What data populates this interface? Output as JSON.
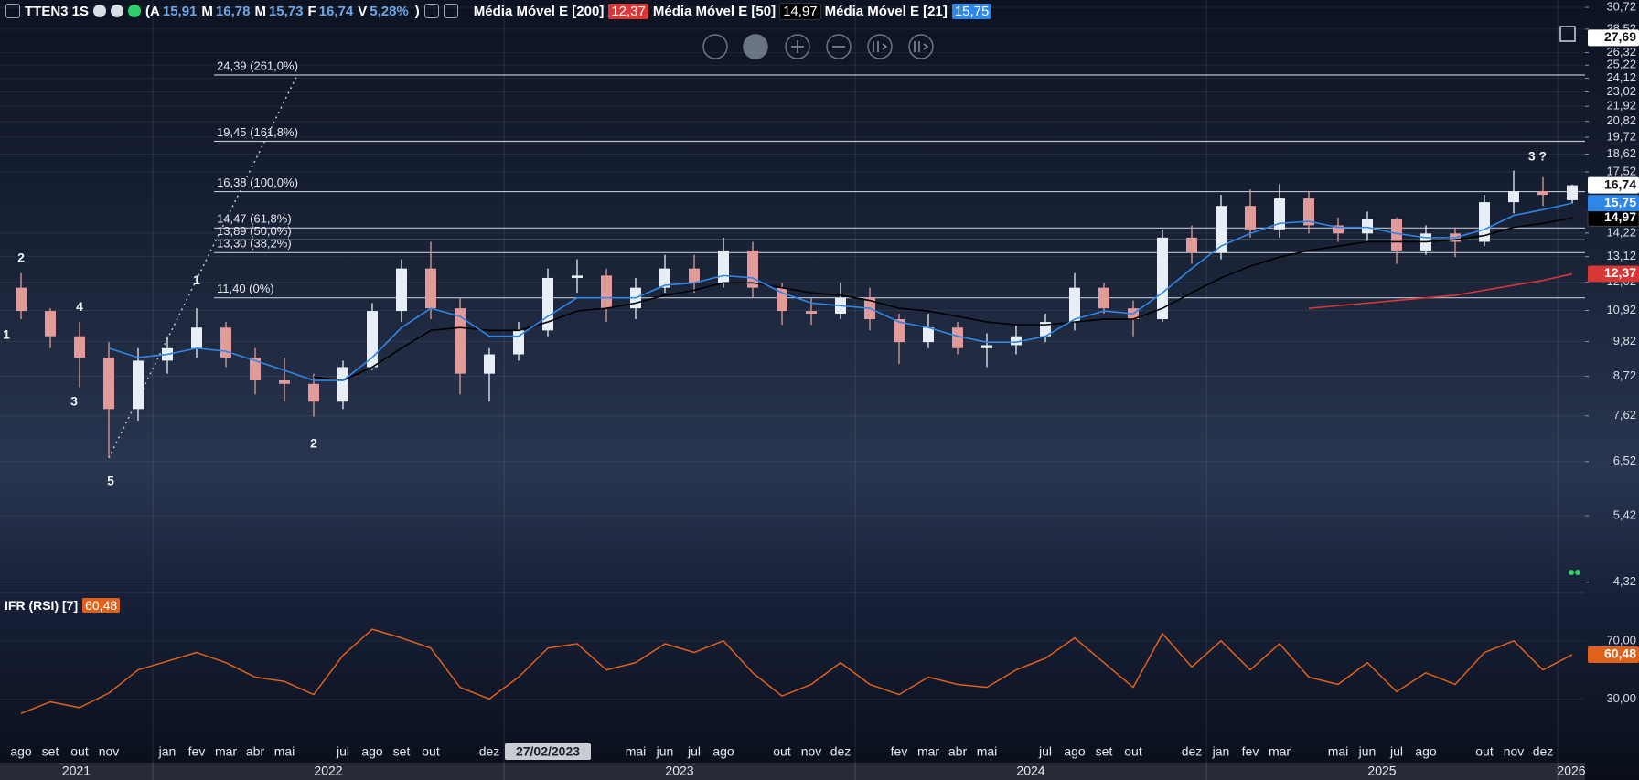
{
  "chart_data": {
    "type": "candlestick",
    "symbol": "TTEN3 1S",
    "header_ohlc": [
      {
        "key": "(A",
        "label": "15,91"
      },
      {
        "key": "M",
        "label": "16,78"
      },
      {
        "key": "M",
        "label": "15,73"
      },
      {
        "key": "F",
        "label": "16,74"
      },
      {
        "key": "V",
        "label": "5,28%"
      }
    ],
    "header_suffix": ")",
    "log_scale": true,
    "grid": true,
    "ylim": [
      4.17,
      31.5
    ],
    "yticks": [
      {
        "value": 4.32,
        "label": "4,32"
      },
      {
        "value": 5.42,
        "label": "5,42"
      },
      {
        "value": 6.52,
        "label": "6,52"
      },
      {
        "value": 7.62,
        "label": "7,62"
      },
      {
        "value": 8.72,
        "label": "8,72"
      },
      {
        "value": 9.82,
        "label": "9,82"
      },
      {
        "value": 10.92,
        "label": "10,92"
      },
      {
        "value": 12.02,
        "label": "12,02"
      },
      {
        "value": 13.12,
        "label": "13,12"
      },
      {
        "value": 14.22,
        "label": "14,22"
      },
      {
        "value": 17.52,
        "label": "17,52"
      },
      {
        "value": 18.62,
        "label": "18,62"
      },
      {
        "value": 19.72,
        "label": "19,72"
      },
      {
        "value": 20.82,
        "label": "20,82"
      },
      {
        "value": 21.92,
        "label": "21,92"
      },
      {
        "value": 23.02,
        "label": "23,02"
      },
      {
        "value": 24.12,
        "label": "24,12"
      },
      {
        "value": 25.22,
        "label": "25,22"
      },
      {
        "value": 26.32,
        "label": "26,32"
      },
      {
        "value": 28.52,
        "label": "28,52"
      },
      {
        "value": 30.72,
        "label": "30,72"
      }
    ],
    "categories": [
      "ago",
      "set",
      "out",
      "nov",
      null,
      "jan",
      "fev",
      "mar",
      "abr",
      "mai",
      null,
      "jul",
      "ago",
      "set",
      "out",
      null,
      "dez",
      null,
      "27/02/2023",
      null,
      null,
      "mai",
      "jun",
      "jul",
      "ago",
      null,
      "out",
      "nov",
      "dez",
      null,
      "fev",
      "mar",
      "abr",
      "mai",
      null,
      "jul",
      "ago",
      "set",
      "out",
      null,
      "dez",
      "jan",
      "fev",
      "mar",
      null,
      "mai",
      "jun",
      "jul",
      "ago",
      null,
      "out",
      "nov",
      "dez",
      null
    ],
    "years": [
      "2021",
      "2022",
      "2023",
      "2024",
      "2025",
      "2026"
    ],
    "candles": {
      "open": [
        11.8,
        10.9,
        10.0,
        9.3,
        7.8,
        9.2,
        9.6,
        10.3,
        9.3,
        8.6,
        8.5,
        8.0,
        9.0,
        10.9,
        12.6,
        11.0,
        8.8,
        9.4,
        10.2,
        12.2,
        12.3,
        11.0,
        11.8,
        12.6,
        12.0,
        13.4,
        11.8,
        10.9,
        10.8,
        11.4,
        10.6,
        9.8,
        10.3,
        9.6,
        9.7,
        10.0,
        10.5,
        11.8,
        11.0,
        10.6,
        14.0,
        13.3,
        15.6,
        14.4,
        16.0,
        14.6,
        14.2,
        14.9,
        13.4,
        14.2,
        13.8,
        15.8,
        16.4,
        15.91
      ],
      "high": [
        12.4,
        11.0,
        10.5,
        9.8,
        9.6,
        10.0,
        11.0,
        10.5,
        9.6,
        9.3,
        8.8,
        9.2,
        11.2,
        13.0,
        13.8,
        11.4,
        9.6,
        10.5,
        12.6,
        13.0,
        12.6,
        12.2,
        13.2,
        13.2,
        14.0,
        13.8,
        12.0,
        11.4,
        12.0,
        11.8,
        10.8,
        10.8,
        10.5,
        10.1,
        10.4,
        10.8,
        12.4,
        12.0,
        11.3,
        14.4,
        14.6,
        16.2,
        16.5,
        16.8,
        16.4,
        15.0,
        15.3,
        15.0,
        14.6,
        14.5,
        16.2,
        17.6,
        17.2,
        16.78
      ],
      "low": [
        10.6,
        9.6,
        8.4,
        6.6,
        7.5,
        8.8,
        9.3,
        9.0,
        8.2,
        8.0,
        7.6,
        7.8,
        8.9,
        10.5,
        10.6,
        8.2,
        8.0,
        9.2,
        10.0,
        11.6,
        10.5,
        10.6,
        11.6,
        11.6,
        11.8,
        11.4,
        10.4,
        10.4,
        10.6,
        10.2,
        9.1,
        9.6,
        9.4,
        9.0,
        9.4,
        9.8,
        10.2,
        10.8,
        10.0,
        10.5,
        12.8,
        13.0,
        14.0,
        14.0,
        14.2,
        13.8,
        13.8,
        12.8,
        13.2,
        13.1,
        13.6,
        15.2,
        15.6,
        15.73
      ],
      "close": [
        10.9,
        10.0,
        9.3,
        7.8,
        9.2,
        9.6,
        10.3,
        9.3,
        8.6,
        8.5,
        8.0,
        9.0,
        10.9,
        12.6,
        11.0,
        8.8,
        9.4,
        10.2,
        12.2,
        12.3,
        11.0,
        11.8,
        12.6,
        12.0,
        13.4,
        11.8,
        10.9,
        10.8,
        11.4,
        10.6,
        9.8,
        10.3,
        9.6,
        9.7,
        10.0,
        10.5,
        11.8,
        11.0,
        10.6,
        14.0,
        13.3,
        15.6,
        14.4,
        16.0,
        14.6,
        14.2,
        14.9,
        13.4,
        14.2,
        13.8,
        15.8,
        16.4,
        16.2,
        16.74
      ]
    },
    "up_color": "#e8eef5",
    "down_color": "#e39a9a",
    "series": [
      {
        "name": "Média Móvel E [200]",
        "color": "#d93636",
        "values": [
          null,
          null,
          null,
          null,
          null,
          null,
          null,
          null,
          null,
          null,
          null,
          null,
          null,
          null,
          null,
          null,
          null,
          null,
          null,
          null,
          null,
          null,
          null,
          null,
          null,
          null,
          null,
          null,
          null,
          null,
          null,
          null,
          null,
          null,
          null,
          null,
          null,
          null,
          null,
          null,
          null,
          null,
          null,
          null,
          11.0,
          11.1,
          11.2,
          11.3,
          11.4,
          11.5,
          11.7,
          11.9,
          12.1,
          12.37
        ],
        "value_labels": [
          null,
          null,
          null,
          null,
          null,
          null,
          null,
          null,
          null,
          null,
          null,
          null,
          null,
          null,
          null,
          null,
          null,
          null,
          null,
          null,
          null,
          null,
          null,
          null,
          null,
          null,
          null,
          null,
          null,
          null,
          null,
          null,
          null,
          null,
          null,
          null,
          null,
          null,
          null,
          null,
          null,
          null,
          null,
          null,
          null,
          null,
          null,
          null,
          null,
          null,
          null,
          null,
          null,
          "12,37"
        ]
      },
      {
        "name": "Média Móvel E [50]",
        "color": "#000000",
        "values": [
          null,
          null,
          null,
          null,
          null,
          null,
          null,
          null,
          null,
          null,
          8.7,
          8.6,
          9.0,
          9.6,
          10.2,
          10.3,
          10.2,
          10.2,
          10.5,
          10.9,
          11.0,
          11.2,
          11.5,
          11.7,
          12.0,
          12.0,
          11.8,
          11.6,
          11.5,
          11.3,
          11.0,
          10.9,
          10.7,
          10.5,
          10.4,
          10.4,
          10.5,
          10.6,
          10.6,
          11.0,
          11.6,
          12.2,
          12.7,
          13.1,
          13.4,
          13.6,
          13.8,
          13.8,
          13.8,
          13.9,
          14.1,
          14.5,
          14.7,
          14.97
        ],
        "value_labels": [
          null,
          null,
          null,
          null,
          null,
          null,
          null,
          null,
          null,
          null,
          null,
          null,
          null,
          null,
          null,
          null,
          null,
          null,
          null,
          null,
          null,
          null,
          null,
          null,
          null,
          null,
          null,
          null,
          null,
          null,
          null,
          null,
          null,
          null,
          null,
          null,
          null,
          null,
          null,
          null,
          null,
          null,
          null,
          null,
          null,
          null,
          null,
          null,
          null,
          null,
          null,
          null,
          null,
          "14,97"
        ]
      },
      {
        "name": "Média Móvel E [21]",
        "color": "#2e86e6",
        "values": [
          null,
          null,
          null,
          9.6,
          9.3,
          9.4,
          9.6,
          9.5,
          9.2,
          8.9,
          8.6,
          8.6,
          9.3,
          10.3,
          11.0,
          10.7,
          10.0,
          10.0,
          10.7,
          11.4,
          11.4,
          11.4,
          11.9,
          12.0,
          12.3,
          12.2,
          11.6,
          11.2,
          11.1,
          11.0,
          10.5,
          10.3,
          10.0,
          9.8,
          9.8,
          10.0,
          10.6,
          10.9,
          10.8,
          11.6,
          12.6,
          13.6,
          14.2,
          14.7,
          14.8,
          14.5,
          14.5,
          14.2,
          14.0,
          14.0,
          14.4,
          15.1,
          15.4,
          15.75
        ],
        "value_labels": [
          null,
          null,
          null,
          null,
          null,
          null,
          null,
          null,
          null,
          null,
          null,
          null,
          null,
          null,
          null,
          null,
          null,
          null,
          null,
          null,
          null,
          null,
          null,
          null,
          null,
          null,
          null,
          null,
          null,
          null,
          null,
          null,
          null,
          null,
          null,
          null,
          null,
          null,
          null,
          null,
          null,
          null,
          null,
          null,
          null,
          null,
          null,
          null,
          null,
          null,
          null,
          null,
          null,
          "15,75"
        ]
      }
    ],
    "fib_levels": [
      {
        "value": 24.39,
        "label": "24,39 (261,0%)"
      },
      {
        "value": 19.45,
        "label": "19,45 (161,8%)"
      },
      {
        "value": 16.38,
        "label": "16,38 (100,0%)"
      },
      {
        "value": 14.47,
        "label": "14,47 (61,8%)"
      },
      {
        "value": 13.89,
        "label": "13,89 (50,0%)"
      },
      {
        "value": 13.3,
        "label": "13,30 (38,2%)"
      },
      {
        "value": 11.4,
        "label": "11,40 (0%)"
      }
    ],
    "annotations": [
      "2",
      "1",
      "4",
      "3",
      "5",
      "1",
      "2",
      "3 ?"
    ],
    "crosshair": {
      "value": 27.69,
      "label": "27,69"
    },
    "rsi": {
      "name": "IFR (RSI) [7]",
      "color": "#e0611c",
      "values": [
        20,
        28,
        24,
        34,
        50,
        56,
        62,
        55,
        45,
        42,
        33,
        60,
        78,
        72,
        65,
        38,
        30,
        45,
        65,
        68,
        50,
        55,
        68,
        62,
        70,
        48,
        32,
        40,
        55,
        40,
        33,
        45,
        40,
        38,
        50,
        58,
        72,
        55,
        38,
        75,
        52,
        70,
        50,
        68,
        45,
        40,
        55,
        35,
        48,
        40,
        62,
        70,
        50,
        60.48
      ],
      "value_labels": [
        null,
        null,
        null,
        null,
        null,
        null,
        null,
        null,
        null,
        null,
        null,
        null,
        null,
        null,
        null,
        null,
        null,
        null,
        null,
        null,
        null,
        null,
        null,
        null,
        null,
        null,
        null,
        null,
        null,
        null,
        null,
        null,
        null,
        null,
        null,
        null,
        null,
        null,
        null,
        null,
        null,
        null,
        null,
        null,
        null,
        null,
        null,
        null,
        null,
        null,
        null,
        null,
        null,
        "60,48"
      ],
      "ylim": [
        0,
        102
      ],
      "yticks": [
        {
          "value": 30,
          "label": "30,00"
        },
        {
          "value": 70,
          "label": "70,00"
        }
      ]
    }
  }
}
